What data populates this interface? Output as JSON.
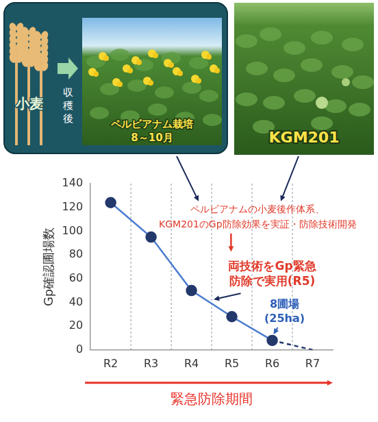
{
  "chart_data": {
    "type": "line",
    "ylabel": "Gp確認圃場数",
    "xlabel": "緊急防除期間",
    "categories": [
      "R2",
      "R3",
      "R4",
      "R5",
      "R6",
      "R7"
    ],
    "series": [
      {
        "values": [
          124,
          95,
          50,
          28,
          8,
          null
        ],
        "color": "#4a7bd0",
        "marker": "circle",
        "line_style": "solid"
      },
      {
        "values": [
          null,
          null,
          null,
          null,
          8,
          0
        ],
        "color": "#23386b",
        "marker": "none",
        "line_style": "dashed"
      }
    ],
    "ylim": [
      0,
      140
    ],
    "yticks": [
      0,
      20,
      40,
      60,
      80,
      100,
      120,
      140
    ],
    "grid": "x",
    "annotations": [
      {
        "lines": [
          "ペルビアナムの小麦後作体系、",
          "KGM201のGp防除効果を実証・防除技術開発"
        ],
        "color": "#e03a2a"
      },
      {
        "lines": [
          "両技術をGp緊急",
          "防除で実用(R5)"
        ],
        "color": "#e03a2a"
      },
      {
        "lines": [
          "8圃場",
          "(25ha)"
        ],
        "color": "#2e5fb8"
      }
    ]
  },
  "images": {
    "left": {
      "crop": "小麦",
      "step": "収穫後",
      "caption": "ペルビアナム栽培",
      "period": "8～10月"
    },
    "right": {
      "caption": "KGM201"
    }
  }
}
